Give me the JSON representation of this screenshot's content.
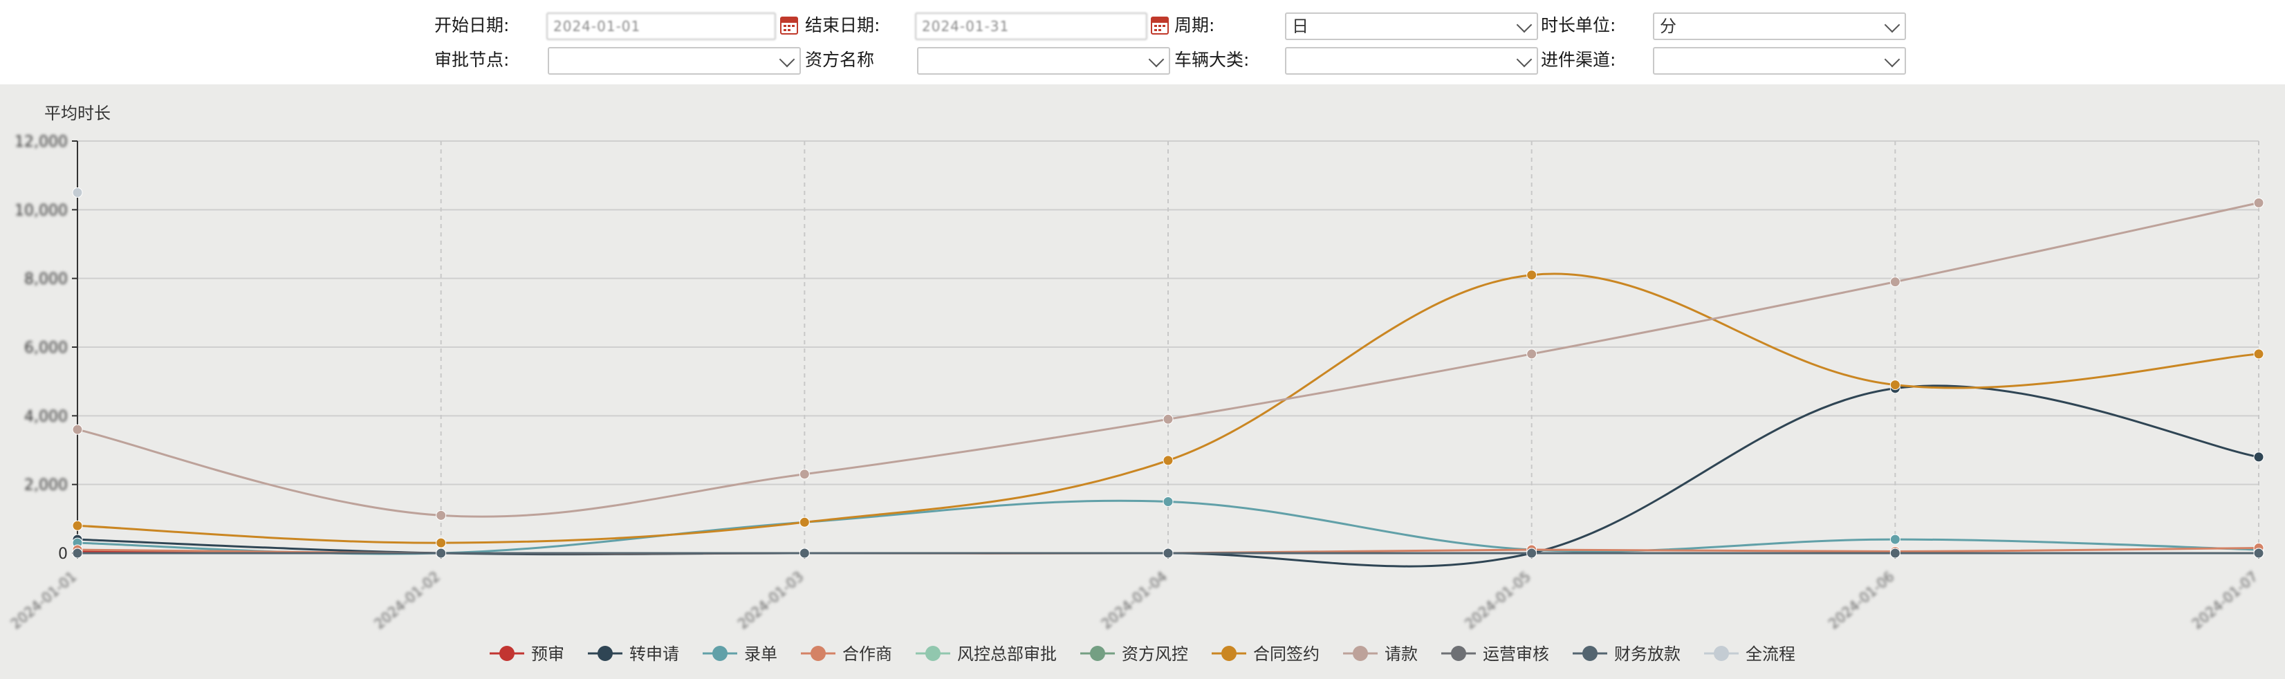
{
  "filters": {
    "start_date": {
      "label": "开始日期:",
      "value": "2024-01-01"
    },
    "end_date": {
      "label": "结束日期:",
      "value": "2024-01-31"
    },
    "period": {
      "label": "周期:",
      "value": "日"
    },
    "duration_unit": {
      "label": "时长单位:",
      "value": "分"
    },
    "approval_node": {
      "label": "审批节点:",
      "value": ""
    },
    "fund_name": {
      "label": "资方名称",
      "value": ""
    },
    "vehicle_category": {
      "label": "车辆大类:",
      "value": ""
    },
    "channel": {
      "label": "进件渠道:",
      "value": ""
    }
  },
  "icons": {
    "calendar": "calendar-icon",
    "dropdown": "chevron-down-icon"
  },
  "chart_data": {
    "type": "line",
    "title": "",
    "ylabel": "平均时长",
    "xlabel": "",
    "ylim": [
      0,
      12000
    ],
    "yticks": [
      0,
      2000,
      4000,
      6000,
      8000,
      10000,
      12000
    ],
    "ytick_labels": [
      "0",
      "2,000",
      "4,000",
      "6,000",
      "8,000",
      "10,000",
      "12,000"
    ],
    "categories": [
      "2024-01-01",
      "2024-01-02",
      "2024-01-03",
      "2024-01-04",
      "2024-01-05",
      "2024-01-06",
      "2024-01-07"
    ],
    "grid": true,
    "legend_position": "bottom-center",
    "series": [
      {
        "name": "预审",
        "color": "#c23531",
        "values": [
          50,
          0,
          0,
          0,
          0,
          0,
          0
        ]
      },
      {
        "name": "转申请",
        "color": "#2f4554",
        "values": [
          400,
          0,
          0,
          0,
          0,
          4800,
          2800
        ]
      },
      {
        "name": "录单",
        "color": "#61a0a8",
        "values": [
          300,
          0,
          900,
          1500,
          100,
          400,
          100
        ]
      },
      {
        "name": "合作商",
        "color": "#d48265",
        "values": [
          100,
          0,
          0,
          0,
          100,
          50,
          150
        ]
      },
      {
        "name": "风控总部审批",
        "color": "#91c7ae",
        "values": [
          0,
          0,
          0,
          0,
          0,
          0,
          0
        ]
      },
      {
        "name": "资方风控",
        "color": "#749f83",
        "values": [
          0,
          0,
          0,
          0,
          0,
          0,
          0
        ]
      },
      {
        "name": "合同签约",
        "color": "#ca8622",
        "values": [
          800,
          300,
          900,
          2700,
          8100,
          4900,
          5800
        ]
      },
      {
        "name": "请款",
        "color": "#bda29a",
        "values": [
          3600,
          1100,
          2300,
          3900,
          5800,
          7900,
          10200
        ]
      },
      {
        "name": "运营审核",
        "color": "#6e7074",
        "values": [
          0,
          0,
          0,
          0,
          0,
          0,
          0
        ]
      },
      {
        "name": "财务放款",
        "color": "#546570",
        "values": [
          0,
          0,
          0,
          0,
          0,
          0,
          0
        ]
      },
      {
        "name": "全流程",
        "color": "#c4ccd3",
        "values": [
          10500,
          null,
          null,
          null,
          null,
          null,
          null
        ]
      }
    ]
  }
}
